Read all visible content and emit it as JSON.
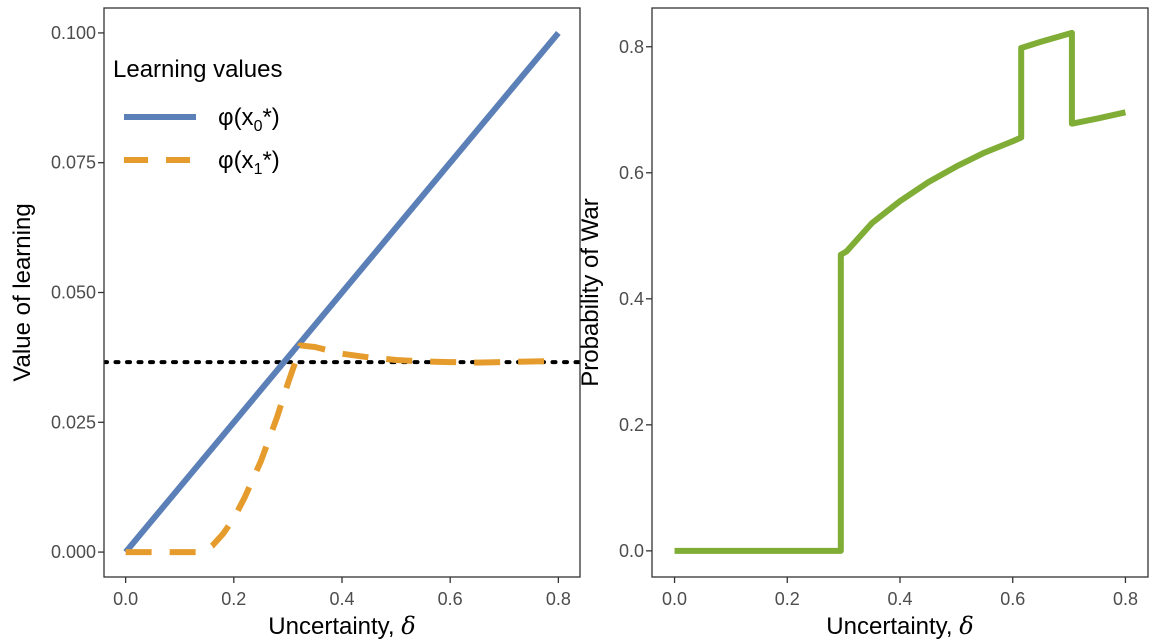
{
  "chart_data": [
    {
      "type": "line",
      "xlabel": "Uncertainty, ",
      "xlabel_symbol": "δ",
      "ylabel": "Value of learning",
      "xlim": [
        -0.04,
        0.84
      ],
      "ylim": [
        -0.0048,
        0.1048
      ],
      "x_ticks": [
        0.0,
        0.2,
        0.4,
        0.6,
        0.8
      ],
      "x_tick_labels": [
        "0.0",
        "0.2",
        "0.4",
        "0.6",
        "0.8"
      ],
      "y_ticks": [
        0.0,
        0.025,
        0.05,
        0.075,
        0.1
      ],
      "y_tick_labels": [
        "0.000",
        "0.025",
        "0.050",
        "0.075",
        "0.100"
      ],
      "grid": false,
      "legend": {
        "title": "Learning values",
        "position": "top-left",
        "entries": [
          {
            "label_main": "φ(x",
            "label_sub": "0",
            "label_tail": "*)",
            "series": 0
          },
          {
            "label_main": "φ(x",
            "label_sub": "1",
            "label_tail": "*)",
            "series": 1
          }
        ]
      },
      "series": [
        {
          "name": "φ(x0*)",
          "color": "#5b7fb7",
          "style": "solid",
          "x": [
            0.0,
            0.8
          ],
          "y": [
            0.0,
            0.1
          ]
        },
        {
          "name": "φ(x1*)",
          "color": "#e59c2c",
          "style": "dashed",
          "x": [
            0.0,
            0.05,
            0.1,
            0.14,
            0.16,
            0.18,
            0.2,
            0.22,
            0.25,
            0.28,
            0.3,
            0.32,
            0.323,
            0.35,
            0.4,
            0.45,
            0.5,
            0.55,
            0.6,
            0.65,
            0.7,
            0.75,
            0.8
          ],
          "y": [
            0.0,
            0.0,
            0.0,
            0.0,
            0.0012,
            0.0035,
            0.0065,
            0.0105,
            0.0175,
            0.026,
            0.0325,
            0.0385,
            0.0398,
            0.0395,
            0.0382,
            0.0375,
            0.037,
            0.0367,
            0.0366,
            0.0365,
            0.0366,
            0.0367,
            0.0368
          ]
        }
      ],
      "reference_line": {
        "y": 0.0366,
        "style": "dotted",
        "color": "#000000"
      }
    },
    {
      "type": "line",
      "xlabel": "Uncertainty, ",
      "xlabel_symbol": "δ",
      "ylabel": "Probability of War",
      "xlim": [
        -0.04,
        0.84
      ],
      "ylim": [
        -0.0415,
        0.8615
      ],
      "x_ticks": [
        0.0,
        0.2,
        0.4,
        0.6,
        0.8
      ],
      "x_tick_labels": [
        "0.0",
        "0.2",
        "0.4",
        "0.6",
        "0.8"
      ],
      "y_ticks": [
        0.0,
        0.2,
        0.4,
        0.6,
        0.8
      ],
      "y_tick_labels": [
        "0.0",
        "0.2",
        "0.4",
        "0.6",
        "0.8"
      ],
      "grid": false,
      "series": [
        {
          "name": "",
          "color": "#7fad35",
          "style": "solid",
          "x": [
            0.0,
            0.2,
            0.295,
            0.295,
            0.305,
            0.315,
            0.35,
            0.4,
            0.45,
            0.5,
            0.55,
            0.6,
            0.615,
            0.615,
            0.65,
            0.705,
            0.705,
            0.75,
            0.8
          ],
          "y": [
            0.0,
            0.0,
            0.0,
            0.47,
            0.475,
            0.485,
            0.52,
            0.555,
            0.585,
            0.61,
            0.632,
            0.65,
            0.656,
            0.798,
            0.808,
            0.822,
            0.678,
            0.686,
            0.696
          ]
        }
      ]
    }
  ]
}
